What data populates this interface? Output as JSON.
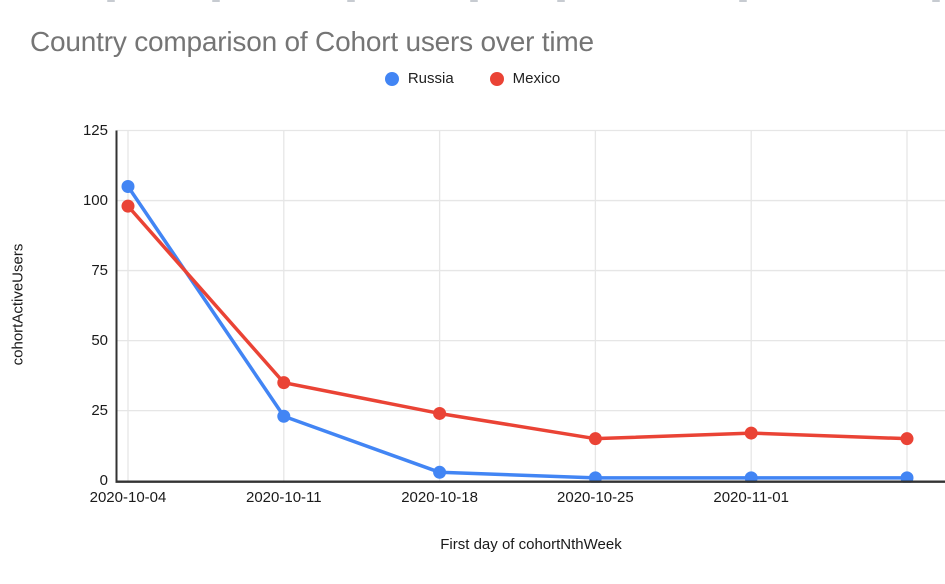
{
  "chart_data": {
    "type": "line",
    "title": "Country comparison of Cohort users over time",
    "xlabel": "First day of cohortNthWeek",
    "ylabel": "cohortActiveUsers",
    "categories": [
      "2020-10-04",
      "2020-10-11",
      "2020-10-18",
      "2020-10-25",
      "2020-11-01",
      ""
    ],
    "series": [
      {
        "name": "Russia",
        "color": "#4285f4",
        "values": [
          105,
          23,
          3,
          1,
          1,
          1
        ]
      },
      {
        "name": "Mexico",
        "color": "#ea4335",
        "values": [
          98,
          35,
          24,
          15,
          17,
          15
        ]
      }
    ],
    "y_ticks": [
      0,
      25,
      50,
      75,
      100,
      125
    ],
    "ylim": [
      0,
      125
    ],
    "grid": true,
    "legend_position": "top",
    "gridline_color": "#e6e6e6",
    "axis_line_color": "#333333",
    "tick_label_color": "#1a1a1a",
    "title_color": "#757575",
    "marker": "circle"
  }
}
